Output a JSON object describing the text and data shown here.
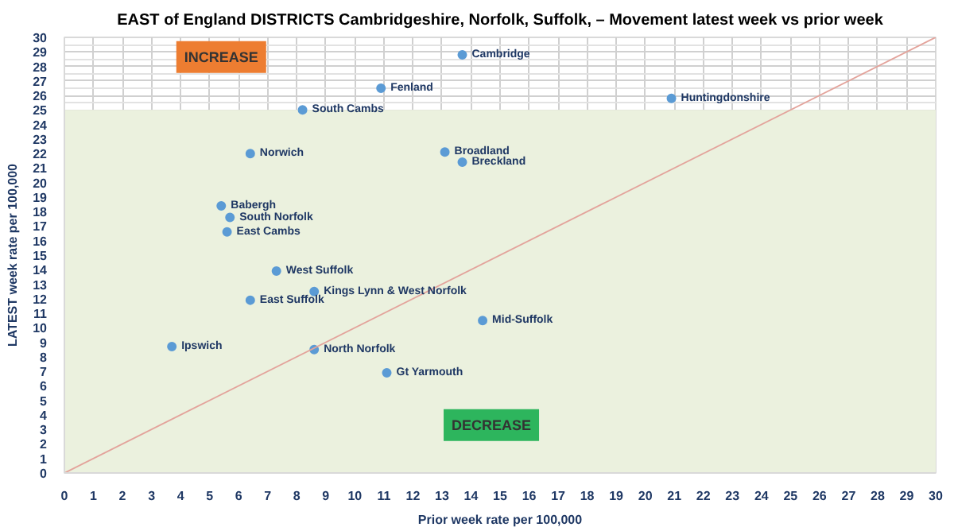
{
  "chart_data": {
    "type": "scatter",
    "title": "EAST of England DISTRICTS Cambridgeshire, Norfolk, Suffolk, – Movement latest week vs prior week",
    "xlabel": "Prior week rate per 100,000",
    "ylabel": "LATEST week rate per 100,000",
    "xlim": [
      0,
      30
    ],
    "ylim": [
      0,
      30
    ],
    "xticks": [
      0,
      1,
      2,
      3,
      4,
      5,
      6,
      7,
      8,
      9,
      10,
      11,
      12,
      13,
      14,
      15,
      16,
      17,
      18,
      19,
      20,
      21,
      22,
      23,
      24,
      25,
      26,
      27,
      28,
      29,
      30
    ],
    "yticks": [
      0,
      1,
      2,
      3,
      4,
      5,
      6,
      7,
      8,
      9,
      10,
      11,
      12,
      13,
      14,
      15,
      16,
      17,
      18,
      19,
      20,
      21,
      22,
      23,
      24,
      25,
      26,
      27,
      28,
      29,
      30
    ],
    "grid": true,
    "marker": "circle",
    "series": [
      {
        "color": "#5b9bd5",
        "x": [
          13.7,
          10.9,
          8.2,
          20.9,
          6.4,
          13.1,
          13.7,
          5.4,
          5.7,
          5.6,
          7.3,
          8.6,
          6.4,
          14.4,
          3.7,
          8.6,
          11.1
        ],
        "values": [
          28.8,
          26.5,
          25.0,
          25.8,
          22.0,
          22.1,
          21.4,
          18.4,
          17.6,
          16.6,
          13.9,
          12.5,
          11.9,
          10.5,
          8.7,
          8.5,
          6.9
        ]
      },
      {
        "type": "line",
        "marker": "none",
        "color": "#e3a39b",
        "x": [
          0,
          30
        ],
        "values": [
          0,
          30
        ]
      }
    ],
    "bands": [
      {
        "axis": "y",
        "from": 0,
        "to": 25,
        "color": "#ebf1de"
      }
    ],
    "annotations": [
      {
        "text": "Cambridge",
        "x": 13.7,
        "y": 28.8
      },
      {
        "text": "Fenland",
        "x": 10.9,
        "y": 26.5
      },
      {
        "text": "South Cambs",
        "x": 8.2,
        "y": 25.0
      },
      {
        "text": "Huntingdonshire",
        "x": 20.9,
        "y": 25.8
      },
      {
        "text": "Norwich",
        "x": 6.4,
        "y": 22.0
      },
      {
        "text": "Broadland",
        "x": 13.1,
        "y": 22.1
      },
      {
        "text": "Breckland",
        "x": 13.7,
        "y": 21.4
      },
      {
        "text": "Babergh",
        "x": 5.4,
        "y": 18.4
      },
      {
        "text": "South Norfolk",
        "x": 5.7,
        "y": 17.6
      },
      {
        "text": "East Cambs",
        "x": 5.6,
        "y": 16.6
      },
      {
        "text": "West Suffolk",
        "x": 7.3,
        "y": 13.9
      },
      {
        "text": "Kings Lynn & West Norfolk",
        "x": 8.6,
        "y": 12.5
      },
      {
        "text": "East Suffolk",
        "x": 6.4,
        "y": 11.9
      },
      {
        "text": "Mid-Suffolk",
        "x": 14.4,
        "y": 10.5
      },
      {
        "text": "Ipswich",
        "x": 3.7,
        "y": 8.7
      },
      {
        "text": "North Norfolk",
        "x": 8.6,
        "y": 8.5
      },
      {
        "text": "Gt Yarmouth",
        "x": 11.1,
        "y": 6.9
      },
      "INCREASE",
      "DECREASE"
    ]
  }
}
